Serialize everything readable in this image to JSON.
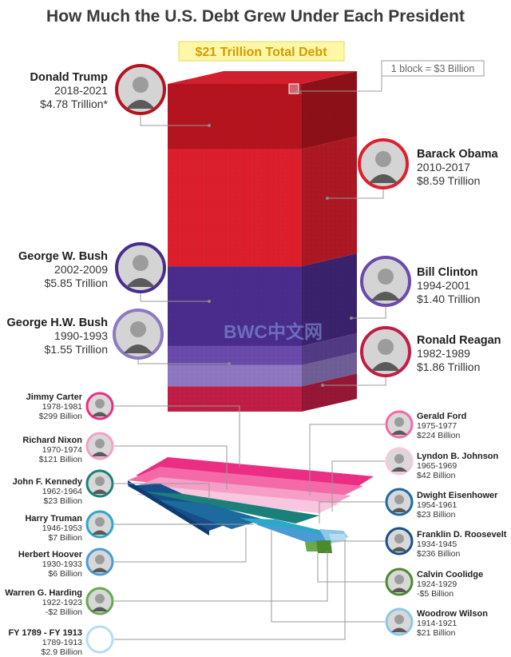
{
  "chart_data": {
    "type": "stacked-block",
    "title": "How Much the U.S. Debt Grew Under Each President",
    "total_label": "$21 Trillion Total Debt",
    "legend_note": "1 block = $3 Billion",
    "watermark": "BWC中文网",
    "tall_stack": [
      {
        "name": "Donald Trump",
        "years": "2018-2021",
        "amount": "$4.78 Trillion*",
        "value_trillion": 4.78,
        "color": "#b5141f"
      },
      {
        "name": "Barack Obama",
        "years": "2010-2017",
        "amount": "$8.59 Trillion",
        "value_trillion": 8.59,
        "color": "#dd1f2d"
      },
      {
        "name": "George W. Bush",
        "years": "2002-2009",
        "amount": "$5.85 Trillion",
        "value_trillion": 5.85,
        "color": "#4a2c8c"
      },
      {
        "name": "Bill Clinton",
        "years": "1994-2001",
        "amount": "$1.40 Trillion",
        "value_trillion": 1.4,
        "color": "#6a4aab"
      },
      {
        "name": "George H.W. Bush",
        "years": "1990-1993",
        "amount": "$1.55 Trillion",
        "value_trillion": 1.55,
        "color": "#8f78c2"
      },
      {
        "name": "Ronald Reagan",
        "years": "1982-1989",
        "amount": "$1.86 Trillion",
        "value_trillion": 1.86,
        "color": "#c01e45"
      }
    ],
    "small_slab": [
      {
        "name": "Jimmy Carter",
        "years": "1978-1981",
        "amount": "$299 Billion",
        "value_billion": 299,
        "color": "#ec2d84"
      },
      {
        "name": "Gerald Ford",
        "years": "1975-1977",
        "amount": "$224 Billion",
        "value_billion": 224,
        "color": "#f46aa8"
      },
      {
        "name": "Richard Nixon",
        "years": "1970-1974",
        "amount": "$121 Billion",
        "value_billion": 121,
        "color": "#f59fc8"
      },
      {
        "name": "Lyndon B. Johnson",
        "years": "1965-1969",
        "amount": "$42 Billion",
        "value_billion": 42,
        "color": "#f8c6de"
      },
      {
        "name": "John F. Kennedy",
        "years": "1962-1964",
        "amount": "$23 Billion",
        "value_billion": 23,
        "color": "#1a8079"
      },
      {
        "name": "Dwight Eisenhower",
        "years": "1954-1961",
        "amount": "$23 Billion",
        "value_billion": 23,
        "color": "#1d6b9e"
      },
      {
        "name": "Franklin D. Roosevelt",
        "years": "1934-1945",
        "amount": "$236 Billion",
        "value_billion": 236,
        "color": "#174f8c"
      },
      {
        "name": "Harry Truman",
        "years": "1946-1953",
        "amount": "$7 Billion",
        "value_billion": 7,
        "color": "#2aa8c7"
      },
      {
        "name": "Herbert Hoover",
        "years": "1930-1933",
        "amount": "$6 Billion",
        "value_billion": 6,
        "color": "#4a9ad6"
      },
      {
        "name": "Warren G. Harding",
        "years": "1922-1923",
        "amount": "-$2 Billion",
        "value_billion": -2,
        "color": "#6aa84f"
      },
      {
        "name": "Calvin Coolidge",
        "years": "1924-1929",
        "amount": "-$5 Billion",
        "value_billion": -5,
        "color": "#4d8a2f"
      },
      {
        "name": "Woodrow Wilson",
        "years": "1914-1921",
        "amount": "$21 Billion",
        "value_billion": 21,
        "color": "#8cc6ea"
      },
      {
        "name": "FY 1789 - FY 1913",
        "years": "1789-1913",
        "amount": "$2.9 Billion",
        "value_billion": 2.9,
        "color": "#b7dcf1"
      }
    ]
  }
}
